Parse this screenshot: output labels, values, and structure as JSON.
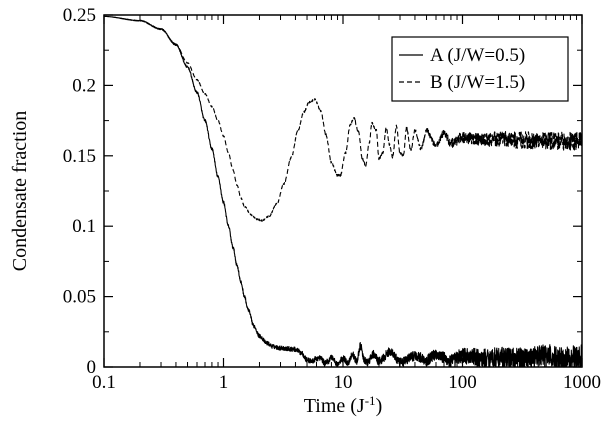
{
  "chart_data": {
    "type": "line",
    "title": "",
    "xlabel": "Time (J",
    "xlabel_sup": "-1",
    "xlabel_close": ")",
    "ylabel": "Condensate fraction",
    "xscale": "log",
    "xlim": [
      0.1,
      1000
    ],
    "ylim": [
      0,
      0.25
    ],
    "xticks": [
      {
        "value": 0.1,
        "label": "0.1"
      },
      {
        "value": 1,
        "label": "1"
      },
      {
        "value": 10,
        "label": "10"
      },
      {
        "value": 100,
        "label": "100"
      },
      {
        "value": 1000,
        "label": "1000"
      }
    ],
    "yticks": [
      {
        "value": 0,
        "label": "0"
      },
      {
        "value": 0.05,
        "label": "0.05"
      },
      {
        "value": 0.1,
        "label": "0.1"
      },
      {
        "value": 0.15,
        "label": "0.15"
      },
      {
        "value": 0.2,
        "label": "0.2"
      },
      {
        "value": 0.25,
        "label": "0.25"
      }
    ],
    "grid": false,
    "legend_position": "top-right",
    "series": [
      {
        "name": "A (J/W=0.5)",
        "style": "solid",
        "color": "#000000",
        "x": [
          0.1,
          0.2,
          0.3,
          0.4,
          0.5,
          0.6,
          0.7,
          0.8,
          0.9,
          1.0,
          1.1,
          1.2,
          1.3,
          1.4,
          1.5,
          1.6,
          1.8,
          2.0,
          2.3,
          2.6,
          3.0,
          3.5,
          4.0,
          4.5,
          5.0,
          5.5,
          6.0,
          6.5,
          7.0,
          7.5,
          8.0,
          9.0,
          10,
          11,
          12,
          13,
          14,
          15,
          16,
          18,
          20,
          25,
          30,
          40,
          50,
          60,
          80,
          100,
          150,
          200,
          300,
          500,
          700,
          1000
        ],
        "y": [
          0.249,
          0.246,
          0.24,
          0.229,
          0.213,
          0.195,
          0.175,
          0.155,
          0.135,
          0.117,
          0.1,
          0.085,
          0.072,
          0.06,
          0.05,
          0.041,
          0.029,
          0.022,
          0.017,
          0.0145,
          0.0135,
          0.013,
          0.0125,
          0.01,
          0.005,
          0.004,
          0.006,
          0.0065,
          0.003,
          0.004,
          0.007,
          0.002,
          0.006,
          0.003,
          0.009,
          0.004,
          0.015,
          0.005,
          0.003,
          0.009,
          0.004,
          0.011,
          0.003,
          0.008,
          0.005,
          0.009,
          0.004,
          0.008,
          0.006,
          0.007,
          0.006,
          0.008,
          0.006,
          0.007
        ],
        "noise": [
          {
            "x": 0.1,
            "amp": 0
          },
          {
            "x": 8,
            "amp": 0.002
          },
          {
            "x": 60,
            "amp": 0.004
          },
          {
            "x": 150,
            "amp": 0.007
          },
          {
            "x": 500,
            "amp": 0.008
          },
          {
            "x": 1000,
            "amp": 0.009
          }
        ]
      },
      {
        "name": "B (J/W=1.5)",
        "style": "dashed",
        "color": "#000000",
        "x": [
          0.1,
          0.2,
          0.3,
          0.4,
          0.5,
          0.6,
          0.7,
          0.8,
          0.9,
          1.0,
          1.1,
          1.2,
          1.3,
          1.4,
          1.5,
          1.7,
          1.9,
          2.1,
          2.4,
          2.8,
          3.2,
          3.7,
          4.2,
          4.7,
          5.2,
          5.8,
          6.5,
          7.2,
          8.0,
          9.0,
          9.5,
          10.5,
          11.5,
          12.3,
          13.5,
          14.5,
          15.5,
          16.5,
          17.5,
          19,
          20,
          21.5,
          23,
          24.5,
          26,
          28,
          30,
          32,
          34,
          37,
          40,
          45,
          50,
          60,
          70,
          80,
          100,
          150,
          200,
          300,
          500,
          700,
          1000
        ],
        "y": [
          0.249,
          0.246,
          0.24,
          0.229,
          0.216,
          0.204,
          0.194,
          0.185,
          0.175,
          0.164,
          0.152,
          0.14,
          0.129,
          0.12,
          0.114,
          0.108,
          0.105,
          0.104,
          0.107,
          0.116,
          0.13,
          0.149,
          0.168,
          0.181,
          0.188,
          0.19,
          0.182,
          0.165,
          0.145,
          0.136,
          0.136,
          0.152,
          0.172,
          0.177,
          0.167,
          0.148,
          0.143,
          0.158,
          0.173,
          0.168,
          0.148,
          0.152,
          0.17,
          0.158,
          0.149,
          0.171,
          0.152,
          0.15,
          0.17,
          0.154,
          0.168,
          0.155,
          0.168,
          0.157,
          0.166,
          0.159,
          0.163,
          0.161,
          0.162,
          0.161,
          0.161,
          0.16,
          0.16
        ],
        "noise": [
          {
            "x": 0.1,
            "amp": 0
          },
          {
            "x": 40,
            "amp": 0.001
          },
          {
            "x": 100,
            "amp": 0.004
          },
          {
            "x": 300,
            "amp": 0.006
          },
          {
            "x": 1000,
            "amp": 0.007
          }
        ]
      }
    ]
  }
}
